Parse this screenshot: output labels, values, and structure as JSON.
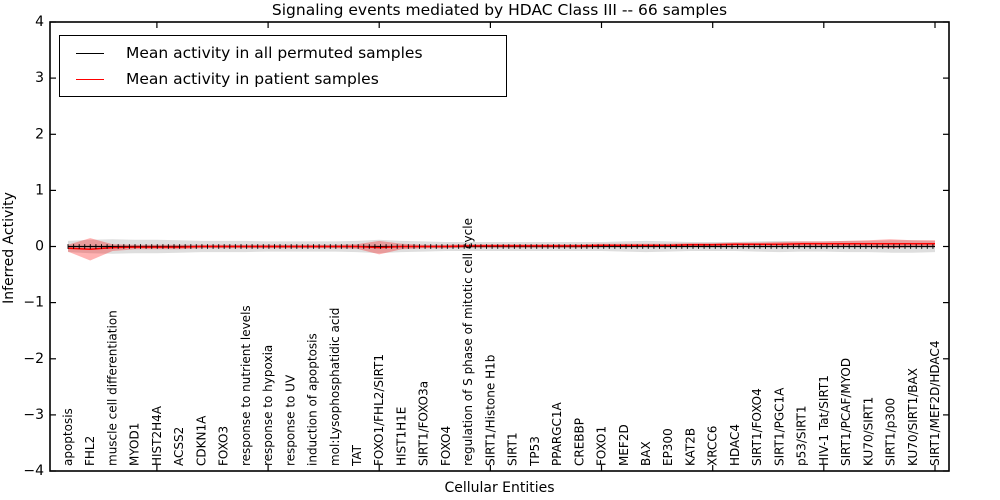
{
  "chart_data": {
    "type": "line",
    "title": "Signaling events mediated by HDAC Class III -- 66 samples",
    "xlabel": "Cellular Entities",
    "ylabel": "Inferred Activity",
    "ylim": [
      -4,
      4
    ],
    "yticks": [
      4,
      3,
      2,
      1,
      0,
      -1,
      -2,
      -3,
      -4
    ],
    "grid": false,
    "legend_position": "upper left",
    "x_major_tick_indices": [
      4,
      9,
      14,
      19,
      24,
      29,
      34,
      39
    ],
    "categories": [
      "apoptosis",
      "FHL2",
      "muscle cell differentiation",
      "MYOD1",
      "HIST2H4A",
      "ACSS2",
      "CDKN1A",
      "FOXO3",
      "response to nutrient levels",
      "response to hypoxia",
      "response to UV",
      "induction of apoptosis",
      "mol:Lysophosphatidic acid",
      "TAT",
      "FOXO1/FHL2/SIRT1",
      "HIST1H1E",
      "SIRT1/FOXO3a",
      "FOXO4",
      "regulation of S phase of mitotic cell cycle",
      "SIRT1/Histone H1b",
      "SIRT1",
      "TP53",
      "PPARGC1A",
      "CREBBP",
      "FOXO1",
      "MEF2D",
      "BAX",
      "EP300",
      "KAT2B",
      "XRCC6",
      "HDAC4",
      "SIRT1/FOXO4",
      "SIRT1/PGC1A",
      "p53/SIRT1",
      "HIV-1 Tat/SIRT1",
      "SIRT1/PCAF/MYOD",
      "KU70/SIRT1",
      "SIRT1/p300",
      "KU70/SIRT1/BAX",
      "SIRT1/MEF2D/HDAC4"
    ],
    "series": [
      {
        "name": "Mean activity in all permuted samples",
        "color": "#000000",
        "band_color": "rgba(0,0,0,0.13)",
        "values": [
          0,
          0,
          0,
          0,
          0,
          0,
          0,
          0,
          0,
          0,
          0,
          0,
          0,
          0,
          0,
          0,
          0,
          0,
          0,
          0,
          0,
          0,
          0,
          0,
          0,
          0,
          0,
          0,
          0,
          0,
          0,
          0,
          0,
          0,
          0,
          0,
          0,
          0,
          0,
          0
        ],
        "band_half_width": [
          0.1,
          0.12,
          0.13,
          0.12,
          0.12,
          0.11,
          0.1,
          0.1,
          0.1,
          0.09,
          0.09,
          0.09,
          0.09,
          0.1,
          0.12,
          0.1,
          0.09,
          0.08,
          0.08,
          0.08,
          0.08,
          0.08,
          0.08,
          0.08,
          0.08,
          0.09,
          0.1,
          0.09,
          0.08,
          0.08,
          0.08,
          0.09,
          0.1,
          0.09,
          0.09,
          0.1,
          0.1,
          0.11,
          0.11,
          0.1
        ]
      },
      {
        "name": "Mean activity in patient samples",
        "color": "#ff0000",
        "band_color": "rgba(255,0,0,0.30)",
        "values": [
          -0.03,
          -0.05,
          -0.02,
          -0.01,
          -0.01,
          -0.01,
          0.0,
          0.0,
          0.0,
          0.0,
          0.0,
          0.0,
          0.0,
          0.0,
          -0.02,
          0.0,
          0.0,
          0.0,
          0.01,
          0.01,
          0.01,
          0.01,
          0.01,
          0.01,
          0.02,
          0.02,
          0.02,
          0.02,
          0.03,
          0.03,
          0.04,
          0.04,
          0.04,
          0.05,
          0.05,
          0.05,
          0.05,
          0.05,
          0.05,
          0.05
        ],
        "band_half_width": [
          0.06,
          0.2,
          0.06,
          0.04,
          0.04,
          0.04,
          0.03,
          0.03,
          0.03,
          0.03,
          0.03,
          0.03,
          0.03,
          0.04,
          0.12,
          0.05,
          0.03,
          0.03,
          0.03,
          0.03,
          0.03,
          0.03,
          0.03,
          0.03,
          0.03,
          0.03,
          0.03,
          0.03,
          0.03,
          0.03,
          0.03,
          0.03,
          0.04,
          0.04,
          0.04,
          0.05,
          0.06,
          0.08,
          0.06,
          0.06
        ]
      }
    ]
  }
}
